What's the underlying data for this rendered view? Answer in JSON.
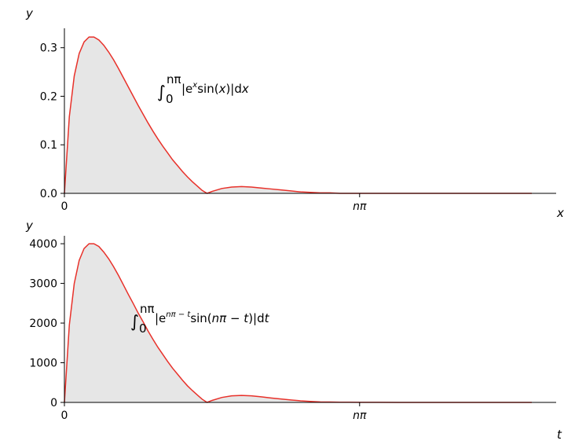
{
  "chart_data": [
    {
      "type": "area",
      "ylabel": "y",
      "xlabel": "x",
      "x_ticks": [
        {
          "x": 0,
          "label": "0"
        },
        {
          "x": 3,
          "label": "nπ"
        }
      ],
      "xlim": [
        0,
        4.75
      ],
      "ylim": [
        0,
        0.34
      ],
      "y_ticks": [
        {
          "value": 0.0,
          "label": "0.0"
        },
        {
          "value": 0.1,
          "label": "0.1"
        },
        {
          "value": 0.2,
          "label": "0.2"
        },
        {
          "value": 0.3,
          "label": "0.3"
        }
      ],
      "annotation": {
        "int_sym": "∫",
        "upper": "nπ",
        "lower": "0",
        "body_pre": "|e",
        "body_sup": "x",
        "body_fn": "sin(",
        "body_var": "x",
        "body_post": ")|d",
        "body_d": "x"
      },
      "line_color": "#e8312a",
      "fill_color": "#e6e6e6",
      "series": [
        {
          "x": [
            0,
            0.05,
            0.1,
            0.15,
            0.2,
            0.25,
            0.3,
            0.35,
            0.4,
            0.45,
            0.5,
            0.55,
            0.6,
            0.65,
            0.7,
            0.75,
            0.8,
            0.85,
            0.9,
            0.95,
            1.0,
            1.05,
            1.1,
            1.15,
            1.2,
            1.25,
            1.3,
            1.35,
            1.4,
            1.45,
            1.5,
            1.6,
            1.7,
            1.8,
            1.9,
            2.0,
            2.1,
            2.2,
            2.3,
            2.4,
            2.5,
            2.6,
            2.7,
            2.8,
            2.9,
            3.0,
            3.2,
            3.4,
            3.6,
            3.8,
            4.0,
            4.2,
            4.4,
            4.6,
            4.75
          ],
          "y": [
            0,
            0.158,
            0.242,
            0.288,
            0.312,
            0.322,
            0.322,
            0.316,
            0.305,
            0.291,
            0.275,
            0.257,
            0.238,
            0.219,
            0.2,
            0.181,
            0.163,
            0.145,
            0.128,
            0.112,
            0.097,
            0.083,
            0.069,
            0.057,
            0.045,
            0.034,
            0.024,
            0.015,
            0.006,
            0.0,
            0.004,
            0.01,
            0.013,
            0.014,
            0.013,
            0.011,
            0.009,
            0.007,
            0.005,
            0.003,
            0.002,
            0.001,
            0.001,
            0.0,
            0.0,
            0.0,
            0.0,
            0.0,
            0.0,
            0.0,
            0.0,
            0.0,
            0.0,
            0.0,
            0.0
          ]
        }
      ]
    },
    {
      "type": "area",
      "ylabel": "y",
      "xlabel": "t",
      "x_ticks": [
        {
          "x": 0,
          "label": "0"
        },
        {
          "x": 3,
          "label": "nπ"
        }
      ],
      "xlim": [
        0,
        4.75
      ],
      "ylim": [
        0,
        4200
      ],
      "y_ticks": [
        {
          "value": 0,
          "label": "0"
        },
        {
          "value": 1000,
          "label": "1000"
        },
        {
          "value": 2000,
          "label": "2000"
        },
        {
          "value": 3000,
          "label": "3000"
        },
        {
          "value": 4000,
          "label": "4000"
        }
      ],
      "annotation": {
        "int_sym": "∫",
        "upper": "nπ",
        "lower": "0",
        "body_pre": "|e",
        "body_sup": "nπ − t",
        "body_fn": "sin(",
        "body_var": "nπ − t",
        "body_post": ")|d",
        "body_d": "t"
      },
      "line_color": "#e8312a",
      "fill_color": "#e6e6e6",
      "series": [
        {
          "x": [
            0,
            0.05,
            0.1,
            0.15,
            0.2,
            0.25,
            0.3,
            0.35,
            0.4,
            0.45,
            0.5,
            0.55,
            0.6,
            0.65,
            0.7,
            0.75,
            0.8,
            0.85,
            0.9,
            0.95,
            1.0,
            1.05,
            1.1,
            1.15,
            1.2,
            1.25,
            1.3,
            1.35,
            1.4,
            1.45,
            1.5,
            1.6,
            1.7,
            1.8,
            1.9,
            2.0,
            2.1,
            2.2,
            2.3,
            2.4,
            2.5,
            2.6,
            2.7,
            2.8,
            2.9,
            3.0,
            3.2,
            3.4,
            3.6,
            3.8,
            4.0,
            4.2,
            4.4,
            4.6,
            4.75
          ],
          "y": [
            0,
            1950,
            3000,
            3580,
            3880,
            4000,
            4000,
            3930,
            3790,
            3620,
            3420,
            3200,
            2960,
            2720,
            2490,
            2250,
            2030,
            1800,
            1590,
            1390,
            1210,
            1030,
            860,
            710,
            560,
            420,
            300,
            190,
            80,
            0,
            50,
            125,
            165,
            175,
            165,
            140,
            112,
            87,
            62,
            40,
            25,
            13,
            10,
            6,
            4,
            3,
            2,
            1,
            0,
            0,
            0,
            0,
            0,
            0,
            0
          ]
        }
      ]
    }
  ]
}
